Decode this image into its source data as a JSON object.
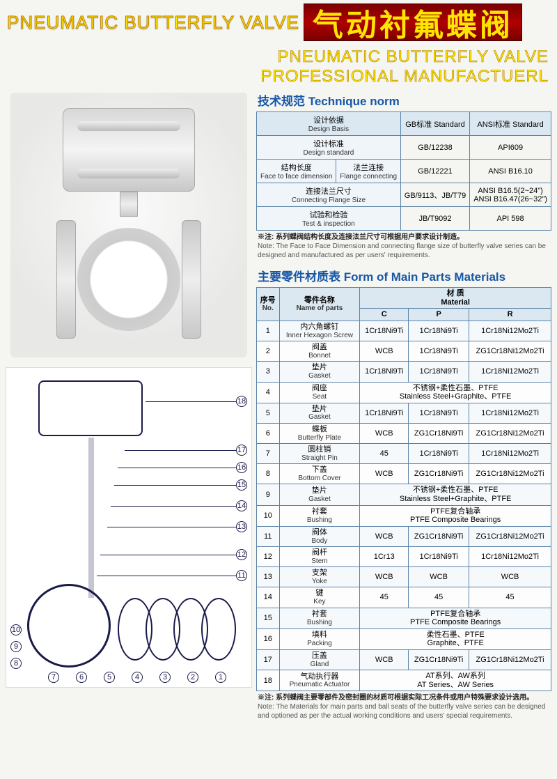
{
  "header": {
    "left_en": "PNEUMATIC BUTTERFLY VALVE",
    "right_cn": "气动衬氟蝶阀",
    "sub1": "PNEUMATIC BUTTERFLY VALVE",
    "sub2": "PROFESSIONAL  MANUFACTUERL"
  },
  "colors": {
    "accent_blue": "#1757a6",
    "border_blue": "#5b83a8",
    "header_hi": "#dbe8f2",
    "gold": "#ffe600"
  },
  "tech": {
    "title": "技术规范  Technique norm",
    "cols": {
      "gb": "GB标准 Standard",
      "ansi": "ANSI标准 Standard"
    },
    "rows": [
      {
        "label_cn": "设计依据",
        "label_en": "Design Basis",
        "gb": "GB标准 Standard",
        "ansi": "ANSI标准 Standard",
        "is_header": true
      },
      {
        "label_cn": "设计标准",
        "label_en": "Design standard",
        "gb": "GB/12238",
        "ansi": "API609"
      },
      {
        "label_cn": "结构长度 / 法兰连接",
        "label_en": "Face to face dimension / Flange connecting",
        "gb": "GB/12221",
        "ansi": "ANSI B16.10",
        "split": true,
        "l1_cn": "结构长度",
        "l1_en": "Face to face dimension",
        "l2_cn": "法兰连接",
        "l2_en": "Flange connecting"
      },
      {
        "label_cn": "连接法兰尺寸",
        "label_en": "Connecting Flange Size",
        "gb": "GB/9113、JB/T79",
        "ansi": "ANSI B16.5(2~24\")\nANSI B16.47(26~32\")"
      },
      {
        "label_cn": "试验和检验",
        "label_en": "Test & inspection",
        "gb": "JB/T9092",
        "ansi": "API 598"
      }
    ],
    "note_cn": "※注:  系列蝶阀结构长度及连接法兰尺寸可根据用户要求设计制造。",
    "note_en": "Note:  The Face to Face Dimension  and connecting flange size of butterfly valve series can be designed and manufactured as per users' requirements."
  },
  "parts": {
    "title": "主要零件材质表  Form of Main Parts Materials",
    "head": {
      "no_cn": "序号",
      "no_en": "No.",
      "name_cn": "零件名称",
      "name_en": "Name of parts",
      "mat_cn": "材 质",
      "mat_en": "Material",
      "c": "C",
      "p": "P",
      "r": "R"
    },
    "rows": [
      {
        "no": 1,
        "cn": "内六角螺钉",
        "en": "Inner Hexagon Screw",
        "c": "1Cr18Ni9Ti",
        "p": "1Cr18Ni9Ti",
        "r": "1Cr18Ni12Mo2Ti"
      },
      {
        "no": 2,
        "cn": "阀盖",
        "en": "Bonnet",
        "c": "WCB",
        "p": "1Cr18Ni9Ti",
        "r": "ZG1Cr18Ni12Mo2Ti"
      },
      {
        "no": 3,
        "cn": "垫片",
        "en": "Gasket",
        "c": "1Cr18Ni9Ti",
        "p": "1Cr18Ni9Ti",
        "r": "1Cr18Ni12Mo2Ti"
      },
      {
        "no": 4,
        "cn": "阀座",
        "en": "Seat",
        "span": "不锈钢+柔性石墨、PTFE\nStainless Steel+Graphite、PTFE"
      },
      {
        "no": 5,
        "cn": "垫片",
        "en": "Gasket",
        "c": "1Cr18Ni9Ti",
        "p": "1Cr18Ni9Ti",
        "r": "1Cr18Ni12Mo2Ti"
      },
      {
        "no": 6,
        "cn": "蝶板",
        "en": "Butterfly Plate",
        "c": "WCB",
        "p": "ZG1Cr18Ni9Ti",
        "r": "ZG1Cr18Ni12Mo2Ti"
      },
      {
        "no": 7,
        "cn": "圆柱销",
        "en": "Straight Pin",
        "c": "45",
        "p": "1Cr18Ni9Ti",
        "r": "1Cr18Ni12Mo2Ti"
      },
      {
        "no": 8,
        "cn": "下盖",
        "en": "Bottom Cover",
        "c": "WCB",
        "p": "ZG1Cr18Ni9Ti",
        "r": "ZG1Cr18Ni12Mo2Ti"
      },
      {
        "no": 9,
        "cn": "垫片",
        "en": "Gasket",
        "span": "不锈钢+柔性石墨、PTFE\nStainless Steel+Graphite、PTFE"
      },
      {
        "no": 10,
        "cn": "衬套",
        "en": "Bushing",
        "span": "PTFE复合轴承\nPTFE Composite Bearings"
      },
      {
        "no": 11,
        "cn": "阀体",
        "en": "Body",
        "c": "WCB",
        "p": "ZG1Cr18Ni9Ti",
        "r": "ZG1Cr18Ni12Mo2Ti"
      },
      {
        "no": 12,
        "cn": "阀杆",
        "en": "Stem",
        "c": "1Cr13",
        "p": "1Cr18Ni9Ti",
        "r": "1Cr18Ni12Mo2Ti"
      },
      {
        "no": 13,
        "cn": "支架",
        "en": "Yoke",
        "c": "WCB",
        "p": "WCB",
        "r": "WCB"
      },
      {
        "no": 14,
        "cn": "键",
        "en": "Key",
        "c": "45",
        "p": "45",
        "r": "45"
      },
      {
        "no": 15,
        "cn": "衬套",
        "en": "Bushing",
        "span": "PTFE复合轴承\nPTFE Composite Bearings"
      },
      {
        "no": 16,
        "cn": "填料",
        "en": "Packing",
        "span": "柔性石墨、PTFE\nGraphite、PTFE"
      },
      {
        "no": 17,
        "cn": "压盖",
        "en": "Gland",
        "c": "WCB",
        "p": "ZG1Cr18Ni9Ti",
        "r": "ZG1Cr18Ni12Mo2Ti"
      },
      {
        "no": 18,
        "cn": "气动执行器",
        "en": "Pneumatic Actuator",
        "span": "AT系列、AW系列\nAT Series、AW Series"
      }
    ],
    "note_cn": "※注:  系列蝶阀主要零部件及密封圈的材质可根据实际工况条件或用户特殊要求设计选用。",
    "note_en": "Note:  The Materials for main parts and ball seats of the butterfly valve series can be designed and optioned as per the actual working conditions and users' special requirements."
  },
  "diagram": {
    "callouts": [
      1,
      2,
      3,
      4,
      5,
      6,
      7,
      8,
      9,
      10,
      11,
      12,
      13,
      14,
      15,
      16,
      17,
      18
    ]
  }
}
